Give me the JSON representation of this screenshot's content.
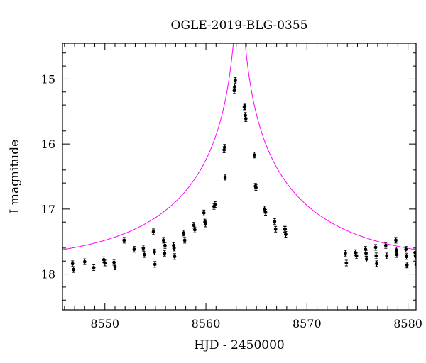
{
  "chart_data": {
    "type": "scatter",
    "title": "OGLE-2019-BLG-0355",
    "xlabel": "HJD - 2450000",
    "ylabel": "I magnitude",
    "xlim": [
      8545.8,
      8580.8
    ],
    "ylim": [
      18.55,
      14.45
    ],
    "y_inverted": true,
    "x_ticks": [
      8550,
      8560,
      8570,
      8580
    ],
    "y_ticks": [
      15,
      16,
      17,
      18
    ],
    "colors": {
      "data": "#000000",
      "model": "#ff00ff",
      "axes": "#000000"
    },
    "series": [
      {
        "type": "scatter",
        "points": [
          [
            8546.8,
            17.84
          ],
          [
            8546.9,
            17.93
          ],
          [
            8548.0,
            17.81
          ],
          [
            8548.9,
            17.9
          ],
          [
            8549.9,
            17.78
          ],
          [
            8550.0,
            17.83
          ],
          [
            8550.9,
            17.82
          ],
          [
            8551.0,
            17.89
          ],
          [
            8551.9,
            17.48
          ],
          [
            8552.9,
            17.62
          ],
          [
            8553.8,
            17.6
          ],
          [
            8553.9,
            17.7
          ],
          [
            8554.8,
            17.35
          ],
          [
            8554.9,
            17.66
          ],
          [
            8554.95,
            17.85
          ],
          [
            8555.8,
            17.48
          ],
          [
            8555.9,
            17.68
          ],
          [
            8555.95,
            17.56
          ],
          [
            8556.8,
            17.56
          ],
          [
            8556.85,
            17.6
          ],
          [
            8556.9,
            17.73
          ],
          [
            8557.8,
            17.37
          ],
          [
            8557.9,
            17.48
          ],
          [
            8558.8,
            17.25
          ],
          [
            8558.9,
            17.32
          ],
          [
            8559.8,
            17.06
          ],
          [
            8559.9,
            17.2
          ],
          [
            8559.95,
            17.23
          ],
          [
            8560.8,
            16.96
          ],
          [
            8560.9,
            16.93
          ],
          [
            8561.8,
            16.09
          ],
          [
            8561.85,
            16.05
          ],
          [
            8561.9,
            16.51
          ],
          [
            8562.8,
            15.18
          ],
          [
            8562.85,
            15.12
          ],
          [
            8562.9,
            15.02
          ],
          [
            8563.8,
            15.43
          ],
          [
            8563.85,
            15.42
          ],
          [
            8563.9,
            15.56
          ],
          [
            8563.95,
            15.61
          ],
          [
            8564.8,
            16.17
          ],
          [
            8564.9,
            16.65
          ],
          [
            8564.95,
            16.67
          ],
          [
            8565.8,
            17.0
          ],
          [
            8565.9,
            17.05
          ],
          [
            8566.8,
            17.19
          ],
          [
            8566.9,
            17.31
          ],
          [
            8567.8,
            17.31
          ],
          [
            8567.85,
            17.31
          ],
          [
            8567.9,
            17.39
          ],
          [
            8573.8,
            17.68
          ],
          [
            8573.9,
            17.83
          ],
          [
            8574.8,
            17.67
          ],
          [
            8574.9,
            17.72
          ],
          [
            8575.8,
            17.62
          ],
          [
            8575.85,
            17.68
          ],
          [
            8575.9,
            17.77
          ],
          [
            8576.8,
            17.59
          ],
          [
            8576.85,
            17.72
          ],
          [
            8576.9,
            17.84
          ],
          [
            8577.8,
            17.56
          ],
          [
            8577.9,
            17.72
          ],
          [
            8578.8,
            17.48
          ],
          [
            8578.85,
            17.63
          ],
          [
            8578.9,
            17.7
          ],
          [
            8579.8,
            17.62
          ],
          [
            8579.85,
            17.73
          ],
          [
            8579.9,
            17.86
          ],
          [
            8580.7,
            17.67
          ],
          [
            8580.75,
            17.73
          ],
          [
            8580.8,
            17.85
          ]
        ]
      },
      {
        "type": "line",
        "model": {
          "t0": 8563.3,
          "u0": 0.015,
          "tE": 14.0,
          "baseline": 17.83
        }
      }
    ]
  }
}
